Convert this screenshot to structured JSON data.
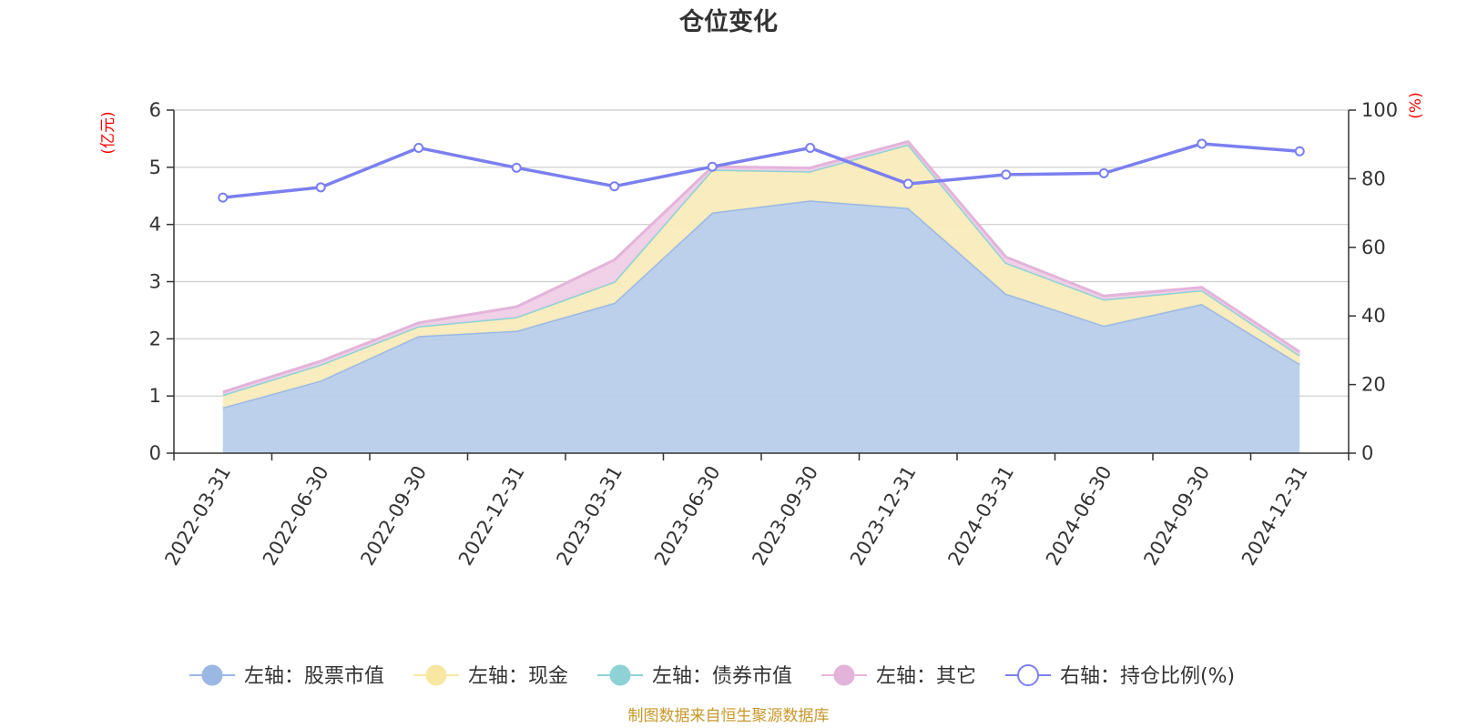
{
  "chart_data": {
    "type": "area",
    "title": "仓位变化",
    "left_unit": "(亿元)",
    "right_unit": "(%)",
    "left_ylim": [
      0,
      6
    ],
    "left_ticks": [
      0,
      1,
      2,
      3,
      4,
      5,
      6
    ],
    "right_ylim": [
      0,
      100
    ],
    "right_ticks": [
      0,
      20,
      40,
      60,
      80,
      100
    ],
    "categories": [
      "2022-03-31",
      "2022-06-30",
      "2022-09-30",
      "2022-12-31",
      "2023-03-31",
      "2023-06-30",
      "2023-09-30",
      "2023-12-31",
      "2024-03-31",
      "2024-06-30",
      "2024-09-30",
      "2024-12-31"
    ],
    "stacked_series": [
      {
        "name": "左轴：股票市值",
        "color": "#9bb8e3",
        "fill": "#b8cdeb",
        "values": [
          0.8,
          1.27,
          2.05,
          2.14,
          2.63,
          4.21,
          4.42,
          4.29,
          2.79,
          2.23,
          2.61,
          1.56
        ]
      },
      {
        "name": "左轴：现金",
        "color": "#f7e7a3",
        "fill": "#f9ecbc",
        "values": [
          0.22,
          0.28,
          0.17,
          0.24,
          0.37,
          0.75,
          0.51,
          1.11,
          0.54,
          0.46,
          0.24,
          0.15
        ]
      },
      {
        "name": "左轴：债券市值",
        "color": "#8ed2d6",
        "fill": "#a8dde0",
        "values": [
          0,
          0,
          0,
          0,
          0,
          0,
          0,
          0,
          0,
          0,
          0,
          0
        ]
      },
      {
        "name": "左轴：其它",
        "color": "#e3b4da",
        "fill": "#efcfe7",
        "values": [
          0.05,
          0.06,
          0.06,
          0.18,
          0.38,
          0.05,
          0.06,
          0.05,
          0.1,
          0.06,
          0.05,
          0.06
        ]
      }
    ],
    "line_series": {
      "name": "右轴：持仓比例(%)",
      "color": "#7b7ff0",
      "values": [
        74.5,
        77.5,
        89.0,
        83.2,
        77.8,
        83.5,
        89.0,
        78.5,
        81.2,
        81.6,
        90.2,
        88.0
      ]
    },
    "source": "制图数据来自恒生聚源数据库"
  }
}
